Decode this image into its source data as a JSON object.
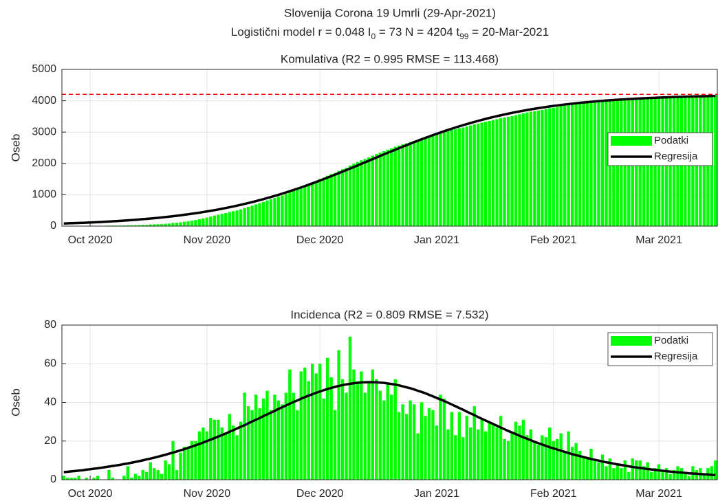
{
  "figure": {
    "title": "Slovenija Corona 19 Umrli (29-Apr-2021)",
    "subtitle": [
      "Logistični model r = 0.048  I",
      "0",
      " = 73  N = 4204  t",
      "99",
      " = 20-Mar-2021"
    ]
  },
  "chart_data": [
    {
      "type": "bar",
      "title": "Komulativa (R2 = 0.995  RMSE = 113.468)",
      "ylabel": "Oseb",
      "categories": [
        null,
        null,
        null,
        null,
        null,
        null,
        null,
        "Oct 2020",
        null,
        null,
        null,
        null,
        null,
        null,
        null,
        null,
        null,
        null,
        null,
        null,
        null,
        null,
        null,
        null,
        null,
        null,
        null,
        null,
        null,
        null,
        null,
        null,
        null,
        null,
        null,
        null,
        null,
        null,
        "Nov 2020",
        null,
        null,
        null,
        null,
        null,
        null,
        null,
        null,
        null,
        null,
        null,
        null,
        null,
        null,
        null,
        null,
        null,
        null,
        null,
        null,
        null,
        null,
        null,
        null,
        null,
        null,
        null,
        null,
        null,
        "Dec 2020",
        null,
        null,
        null,
        null,
        null,
        null,
        null,
        null,
        null,
        null,
        null,
        null,
        null,
        null,
        null,
        null,
        null,
        null,
        null,
        null,
        null,
        null,
        null,
        null,
        null,
        null,
        null,
        null,
        null,
        null,
        "Jan 2021",
        null,
        null,
        null,
        null,
        null,
        null,
        null,
        null,
        null,
        null,
        null,
        null,
        null,
        null,
        null,
        null,
        null,
        null,
        null,
        null,
        null,
        null,
        null,
        null,
        null,
        null,
        null,
        null,
        null,
        null,
        "Feb 2021",
        null,
        null,
        null,
        null,
        null,
        null,
        null,
        null,
        null,
        null,
        null,
        null,
        null,
        null,
        null,
        null,
        null,
        null,
        null,
        null,
        null,
        null,
        null,
        null,
        null,
        null,
        null,
        "Mar 2021",
        null,
        null,
        null,
        null,
        null,
        null,
        null,
        null,
        null,
        null,
        null,
        null,
        null,
        null,
        null
      ],
      "series": [
        {
          "name": "Podatki",
          "type": "bar",
          "color": "#00ff00",
          "values": [
            2,
            3,
            4,
            5,
            7,
            7,
            8,
            8,
            9,
            11,
            11,
            11,
            16,
            17,
            17,
            17,
            19,
            26,
            27,
            30,
            32,
            37,
            41,
            50,
            56,
            61,
            64,
            74,
            82,
            102,
            107,
            121,
            138,
            154,
            174,
            194,
            219,
            246,
            271,
            303,
            334,
            365,
            392,
            416,
            450,
            478,
            501,
            531,
            576,
            614,
            650,
            694,
            731,
            773,
            819,
            855,
            899,
            940,
            979,
            1024,
            1081,
            1126,
            1162,
            1218,
            1276,
            1327,
            1387,
            1442,
            1502,
            1544,
            1607,
            1660,
            1696,
            1763,
            1815,
            1860,
            1934,
            1991,
            2042,
            2098,
            2143,
            2193,
            2250,
            2302,
            2348,
            2389,
            2439,
            2483,
            2535,
            2570,
            2609,
            2643,
            2684,
            2723,
            2747,
            2787,
            2820,
            2857,
            2893,
            2921,
            2965,
            3007,
            3033,
            3068,
            3091,
            3126,
            3148,
            3181,
            3208,
            3246,
            3272,
            3303,
            3328,
            3358,
            3387,
            3414,
            3447,
            3468,
            3488,
            3512,
            3542,
            3570,
            3601,
            3624,
            3650,
            3670,
            3688,
            3711,
            3733,
            3760,
            3780,
            3801,
            3825,
            3840,
            3865,
            3882,
            3901,
            3916,
            3928,
            3939,
            3955,
            3965,
            3974,
            3987,
            3994,
            4005,
            4011,
            4019,
            4025,
            4035,
            4039,
            4050,
            4060,
            4070,
            4077,
            4086,
            4090,
            4096,
            4104,
            4109,
            4115,
            4118,
            4123,
            4130,
            4136,
            4140,
            4142,
            4149,
            4154,
            4160,
            4163,
            4169,
            4176,
            4186
          ]
        },
        {
          "name": "Regresija",
          "type": "line",
          "color": "#000000",
          "values": [
            83,
            87,
            92,
            96,
            101,
            105,
            110,
            116,
            121,
            127,
            133,
            139,
            146,
            153,
            160,
            168,
            176,
            184,
            192,
            201,
            211,
            221,
            231,
            242,
            253,
            264,
            276,
            289,
            302,
            316,
            330,
            345,
            361,
            377,
            394,
            411,
            429,
            448,
            468,
            488,
            509,
            531,
            554,
            577,
            602,
            627,
            653,
            680,
            708,
            736,
            766,
            796,
            828,
            860,
            894,
            928,
            963,
            999,
            1036,
            1074,
            1113,
            1152,
            1193,
            1234,
            1277,
            1320,
            1364,
            1408,
            1453,
            1499,
            1546,
            1593,
            1641,
            1689,
            1738,
            1787,
            1837,
            1886,
            1936,
            1987,
            2037,
            2087,
            2138,
            2188,
            2239,
            2289,
            2339,
            2388,
            2438,
            2487,
            2535,
            2583,
            2631,
            2678,
            2724,
            2770,
            2815,
            2859,
            2903,
            2945,
            2987,
            3028,
            3069,
            3108,
            3147,
            3184,
            3221,
            3256,
            3291,
            3325,
            3358,
            3390,
            3421,
            3451,
            3480,
            3509,
            3536,
            3562,
            3588,
            3613,
            3637,
            3660,
            3683,
            3704,
            3725,
            3745,
            3764,
            3783,
            3800,
            3818,
            3834,
            3850,
            3865,
            3880,
            3894,
            3907,
            3920,
            3933,
            3945,
            3956,
            3967,
            3978,
            3988,
            3997,
            4007,
            4015,
            4024,
            4032,
            4040,
            4047,
            4054,
            4061,
            4068,
            4074,
            4080,
            4085,
            4091,
            4096,
            4101,
            4106,
            4110,
            4114,
            4119,
            4122,
            4126,
            4130,
            4133,
            4137,
            4140,
            4143,
            4145,
            4148,
            4151,
            4153
          ]
        }
      ],
      "reference_line": {
        "value": 4204,
        "color": "#ff0000"
      },
      "ylim": [
        0,
        5000
      ],
      "yticks": [
        0,
        1000,
        2000,
        3000,
        4000,
        5000
      ],
      "grid": true,
      "legend": "east"
    },
    {
      "type": "bar",
      "title": "Incidenca (R2 = 0.809  RMSE = 7.532)",
      "ylabel": "Oseb",
      "categories": [
        null,
        null,
        null,
        null,
        null,
        null,
        null,
        "Oct 2020",
        null,
        null,
        null,
        null,
        null,
        null,
        null,
        null,
        null,
        null,
        null,
        null,
        null,
        null,
        null,
        null,
        null,
        null,
        null,
        null,
        null,
        null,
        null,
        null,
        null,
        null,
        null,
        null,
        null,
        null,
        "Nov 2020",
        null,
        null,
        null,
        null,
        null,
        null,
        null,
        null,
        null,
        null,
        null,
        null,
        null,
        null,
        null,
        null,
        null,
        null,
        null,
        null,
        null,
        null,
        null,
        null,
        null,
        null,
        null,
        null,
        null,
        "Dec 2020",
        null,
        null,
        null,
        null,
        null,
        null,
        null,
        null,
        null,
        null,
        null,
        null,
        null,
        null,
        null,
        null,
        null,
        null,
        null,
        null,
        null,
        null,
        null,
        null,
        null,
        null,
        null,
        null,
        null,
        null,
        "Jan 2021",
        null,
        null,
        null,
        null,
        null,
        null,
        null,
        null,
        null,
        null,
        null,
        null,
        null,
        null,
        null,
        null,
        null,
        null,
        null,
        null,
        null,
        null,
        null,
        null,
        null,
        null,
        null,
        null,
        null,
        null,
        "Feb 2021",
        null,
        null,
        null,
        null,
        null,
        null,
        null,
        null,
        null,
        null,
        null,
        null,
        null,
        null,
        null,
        null,
        null,
        null,
        null,
        null,
        null,
        null,
        null,
        null,
        null,
        null,
        null,
        "Mar 2021",
        null,
        null,
        null,
        null,
        null,
        null,
        null,
        null,
        null,
        null,
        null,
        null,
        null,
        null,
        null
      ],
      "series": [
        {
          "name": "Podatki",
          "type": "bar",
          "color": "#00ff00",
          "values": [
            2,
            1,
            1,
            1,
            2,
            0,
            1,
            0,
            1,
            2,
            0,
            0,
            5,
            1,
            0,
            0,
            2,
            7,
            1,
            3,
            2,
            5,
            4,
            9,
            6,
            5,
            3,
            10,
            8,
            20,
            5,
            14,
            17,
            16,
            20,
            20,
            25,
            27,
            25,
            32,
            31,
            31,
            27,
            24,
            34,
            28,
            23,
            30,
            45,
            38,
            36,
            44,
            37,
            42,
            46,
            36,
            44,
            41,
            39,
            45,
            57,
            45,
            36,
            56,
            58,
            51,
            60,
            55,
            60,
            42,
            63,
            53,
            36,
            67,
            52,
            45,
            74,
            57,
            51,
            56,
            45,
            50,
            57,
            52,
            46,
            41,
            50,
            44,
            52,
            35,
            39,
            34,
            41,
            39,
            24,
            40,
            33,
            37,
            36,
            28,
            44,
            42,
            26,
            35,
            23,
            35,
            22,
            33,
            27,
            38,
            26,
            31,
            25,
            30,
            29,
            27,
            33,
            21,
            20,
            24,
            30,
            28,
            31,
            23,
            26,
            20,
            18,
            23,
            22,
            27,
            20,
            21,
            24,
            15,
            25,
            17,
            19,
            15,
            12,
            11,
            16,
            10,
            9,
            13,
            7,
            11,
            6,
            8,
            6,
            10,
            4,
            11,
            10,
            10,
            7,
            9,
            4,
            6,
            8,
            5,
            6,
            3,
            5,
            7,
            6,
            4,
            2,
            7,
            5,
            6,
            3,
            6,
            7,
            10
          ]
        },
        {
          "name": "Regresija",
          "type": "line",
          "color": "#000000",
          "values": [
            3.9,
            4.1,
            4.3,
            4.5,
            4.7,
            4.9,
            5.2,
            5.4,
            5.7,
            5.9,
            6.2,
            6.5,
            6.8,
            7.1,
            7.4,
            7.7,
            8.1,
            8.4,
            8.8,
            9.2,
            9.6,
            10.0,
            10.5,
            10.9,
            11.4,
            11.9,
            12.4,
            12.9,
            13.5,
            14.0,
            14.6,
            15.2,
            15.8,
            16.5,
            17.1,
            17.8,
            18.5,
            19.2,
            20.0,
            20.7,
            21.5,
            22.3,
            23.1,
            23.9,
            24.8,
            25.6,
            26.5,
            27.4,
            28.2,
            29.2,
            30.1,
            31.0,
            31.9,
            32.9,
            33.8,
            34.7,
            35.6,
            36.6,
            37.5,
            38.4,
            39.3,
            40.2,
            41.0,
            41.9,
            42.7,
            43.5,
            44.2,
            45.0,
            45.6,
            46.3,
            46.9,
            47.5,
            48.0,
            48.5,
            48.9,
            49.3,
            49.6,
            49.9,
            50.1,
            50.3,
            50.4,
            50.5,
            50.4,
            50.4,
            50.2,
            50.1,
            49.8,
            49.5,
            49.2,
            48.8,
            48.3,
            47.8,
            47.3,
            46.7,
            46.0,
            45.4,
            44.7,
            43.9,
            43.1,
            42.3,
            41.5,
            40.7,
            39.8,
            38.9,
            38.0,
            37.1,
            36.2,
            35.2,
            34.3,
            33.4,
            32.4,
            31.5,
            30.6,
            29.7,
            28.8,
            27.9,
            27.0,
            26.1,
            25.2,
            24.4,
            23.6,
            22.7,
            21.9,
            21.2,
            20.4,
            19.6,
            18.9,
            18.2,
            17.5,
            16.8,
            16.2,
            15.6,
            15.0,
            14.4,
            13.8,
            13.2,
            12.7,
            12.2,
            11.7,
            11.2,
            10.7,
            10.3,
            9.9,
            9.4,
            9.0,
            8.7,
            8.3,
            7.9,
            7.6,
            7.3,
            6.9,
            6.6,
            6.3,
            6.1,
            5.8,
            5.5,
            5.3,
            5.1,
            4.8,
            4.6,
            4.4,
            4.2,
            4.0,
            3.8,
            3.7,
            3.5,
            3.3,
            3.2,
            3.1,
            2.9,
            2.8,
            2.7,
            2.5,
            2.4
          ]
        }
      ],
      "ylim": [
        0,
        80
      ],
      "yticks": [
        0,
        20,
        40,
        60,
        80
      ],
      "grid": true,
      "legend": "northeast"
    }
  ]
}
